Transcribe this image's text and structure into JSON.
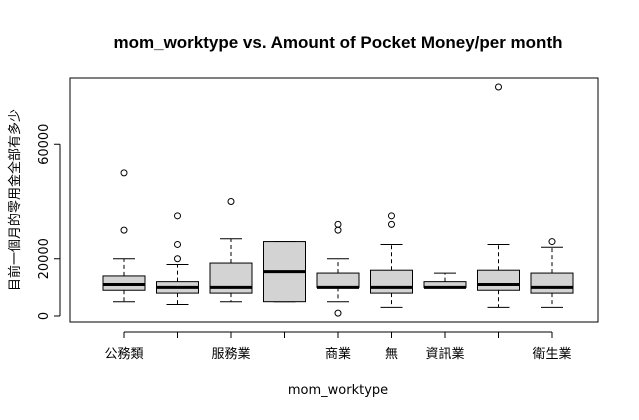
{
  "chart_data": {
    "type": "boxplot",
    "title": "mom_worktype vs. Amount of Pocket Money/per month",
    "xlabel": "mom_worktype",
    "ylabel": "目前一個月的零用金全部有多少",
    "ylim": [
      0,
      80000
    ],
    "yticks": [
      0,
      20000,
      60000
    ],
    "ytick_labels": [
      "0",
      "20000",
      "60000"
    ],
    "grid": false,
    "legend": "none",
    "box_fill": "#d3d3d3",
    "categories": [
      "公務類",
      "",
      "服務業",
      "",
      "商業",
      "無",
      "資訊業",
      "",
      "衛生業"
    ],
    "boxes": [
      {
        "whisker_low": 5000,
        "q1": 9000,
        "median": 11000,
        "q3": 14000,
        "whisker_high": 20000,
        "outliers": [
          30000,
          50000
        ]
      },
      {
        "whisker_low": 4000,
        "q1": 8000,
        "median": 10000,
        "q3": 12000,
        "whisker_high": 18000,
        "outliers": [
          20000,
          25000,
          35000
        ]
      },
      {
        "whisker_low": 5000,
        "q1": 8000,
        "median": 10000,
        "q3": 18500,
        "whisker_high": 27000,
        "outliers": [
          40000
        ]
      },
      {
        "whisker_low": 5000,
        "q1": 5000,
        "median": 15500,
        "q3": 26000,
        "whisker_high": 26000,
        "outliers": []
      },
      {
        "whisker_low": 5000,
        "q1": 10000,
        "median": 10000,
        "q3": 15000,
        "whisker_high": 20000,
        "outliers": [
          1000,
          30000,
          32000
        ]
      },
      {
        "whisker_low": 3000,
        "q1": 8000,
        "median": 10000,
        "q3": 16000,
        "whisker_high": 25000,
        "outliers": [
          32000,
          35000
        ]
      },
      {
        "whisker_low": 10000,
        "q1": 10000,
        "median": 10000,
        "q3": 12000,
        "whisker_high": 15000,
        "outliers": []
      },
      {
        "whisker_low": 3000,
        "q1": 9000,
        "median": 11000,
        "q3": 16000,
        "whisker_high": 25000,
        "outliers": [
          80000
        ]
      },
      {
        "whisker_low": 3000,
        "q1": 8000,
        "median": 10000,
        "q3": 15000,
        "whisker_high": 24000,
        "outliers": [
          26000
        ]
      }
    ]
  }
}
